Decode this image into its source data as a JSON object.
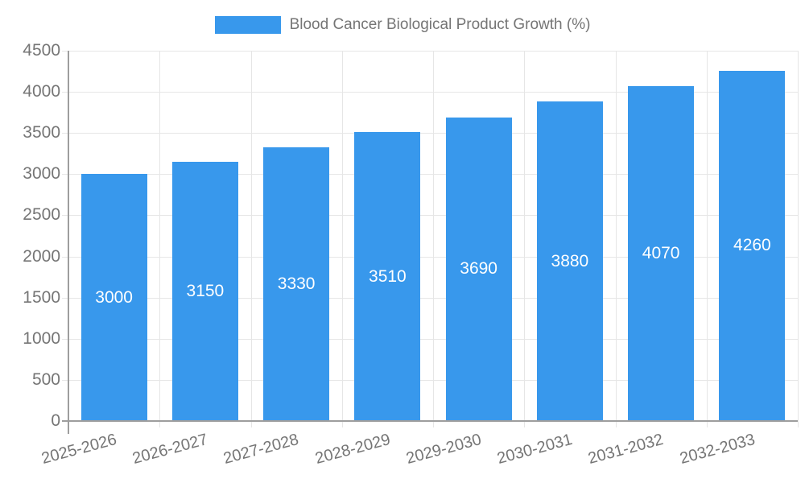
{
  "legend": {
    "label": "Blood Cancer Biological Product Growth (%)",
    "swatch_color": "#3898EC"
  },
  "chart_data": {
    "type": "bar",
    "title": "Blood Cancer Biological Product Growth (%)",
    "categories": [
      "2025-2026",
      "2026-2027",
      "2027-2028",
      "2028-2029",
      "2029-2030",
      "2030-2031",
      "2031-2032",
      "2032-2033"
    ],
    "series": [
      {
        "name": "Blood Cancer Biological Product Growth (%)",
        "color": "#3898EC",
        "values": [
          3000,
          3150,
          3330,
          3510,
          3690,
          3880,
          4070,
          4260
        ]
      }
    ],
    "bar_value_labels": [
      "3000",
      "3150",
      "3330",
      "3510",
      "3690",
      "3880",
      "4070",
      "4260"
    ],
    "xlabel": "",
    "ylabel": "",
    "ylim": [
      0,
      4500
    ],
    "ytick_labels": [
      "0",
      "500",
      "1000",
      "1500",
      "2000",
      "2500",
      "3000",
      "3500",
      "4000",
      "4500"
    ],
    "grid": "horizontal and vertical light gridlines",
    "legend_position": "top-center",
    "x_tick_label_rotation_deg": -15,
    "value_label_position": "inside-middle",
    "value_label_color": "#ffffff",
    "axis_text_color": "#757575",
    "axis_line_color": "#9e9e9e",
    "gridline_color": "#e6e6e6",
    "background_color": "#ffffff"
  }
}
